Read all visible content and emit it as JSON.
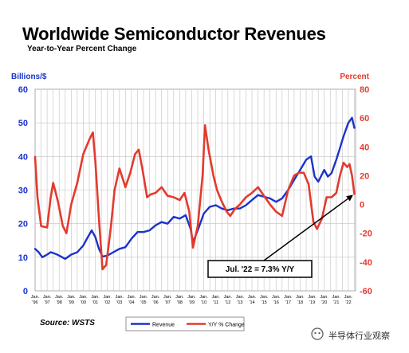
{
  "chart_data": {
    "type": "line",
    "title": "Worldwide Semiconductor Revenues",
    "subtitle": "Year-to-Year Percent Change",
    "left_axis": {
      "label": "Billions/$",
      "range": [
        0,
        60
      ],
      "ticks": [
        0,
        10,
        20,
        30,
        40,
        50,
        60
      ],
      "color": "#1a33cc"
    },
    "right_axis": {
      "label": "Percent",
      "range": [
        -60,
        80
      ],
      "ticks": [
        -60,
        -40,
        -20,
        0,
        20,
        40,
        60,
        80
      ],
      "color": "#e23b2e"
    },
    "x_range": [
      1996,
      2022.6
    ],
    "x_ticks": [
      {
        "year": 1996,
        "label": "Jan. '96"
      },
      {
        "year": 1997,
        "label": "Jan. '97"
      },
      {
        "year": 1998,
        "label": "Jan. '98"
      },
      {
        "year": 1999,
        "label": "Jan. '99"
      },
      {
        "year": 2000,
        "label": "Jan. '00"
      },
      {
        "year": 2001,
        "label": "Jan. '01"
      },
      {
        "year": 2002,
        "label": "Jan. '02"
      },
      {
        "year": 2003,
        "label": "Jan. '03"
      },
      {
        "year": 2004,
        "label": "Jan. '04"
      },
      {
        "year": 2005,
        "label": "Jan. '05"
      },
      {
        "year": 2006,
        "label": "Jan. '06"
      },
      {
        "year": 2007,
        "label": "Jan. '07"
      },
      {
        "year": 2008,
        "label": "Jan. '08"
      },
      {
        "year": 2009,
        "label": "Jan. '09"
      },
      {
        "year": 2010,
        "label": "Jan. '10"
      },
      {
        "year": 2011,
        "label": "Jan. '11"
      },
      {
        "year": 2012,
        "label": "Jan. '12"
      },
      {
        "year": 2013,
        "label": "Jan. '13"
      },
      {
        "year": 2014,
        "label": "Jan. '14"
      },
      {
        "year": 2015,
        "label": "Jan. '15"
      },
      {
        "year": 2016,
        "label": "Jan. '16"
      },
      {
        "year": 2017,
        "label": "Jan. '17"
      },
      {
        "year": 2018,
        "label": "Jan. '18"
      },
      {
        "year": 2019,
        "label": "Jan. '19"
      },
      {
        "year": 2020,
        "label": "Jan. '20"
      },
      {
        "year": 2021,
        "label": "Jan. '21"
      },
      {
        "year": 2022,
        "label": "Jan. '22"
      }
    ],
    "grid": true,
    "legend_position": "bottom-center",
    "series": [
      {
        "name": "Revenue",
        "axis": "left",
        "color": "#1a33cc",
        "points": [
          [
            1996.0,
            12.5
          ],
          [
            1996.3,
            11.5
          ],
          [
            1996.6,
            10.0
          ],
          [
            1997.0,
            10.8
          ],
          [
            1997.3,
            11.5
          ],
          [
            1997.7,
            11.0
          ],
          [
            1998.0,
            10.5
          ],
          [
            1998.5,
            9.5
          ],
          [
            1999.0,
            10.8
          ],
          [
            1999.5,
            11.5
          ],
          [
            2000.0,
            13.5
          ],
          [
            2000.3,
            15.5
          ],
          [
            2000.7,
            18.0
          ],
          [
            2001.0,
            16.0
          ],
          [
            2001.3,
            12.5
          ],
          [
            2001.6,
            10.2
          ],
          [
            2002.0,
            10.5
          ],
          [
            2002.5,
            11.5
          ],
          [
            2003.0,
            12.5
          ],
          [
            2003.5,
            13.0
          ],
          [
            2004.0,
            15.5
          ],
          [
            2004.5,
            17.5
          ],
          [
            2005.0,
            17.5
          ],
          [
            2005.5,
            18.0
          ],
          [
            2006.0,
            19.5
          ],
          [
            2006.5,
            20.5
          ],
          [
            2007.0,
            20.0
          ],
          [
            2007.5,
            22.0
          ],
          [
            2008.0,
            21.5
          ],
          [
            2008.5,
            22.5
          ],
          [
            2008.9,
            18.5
          ],
          [
            2009.1,
            14.5
          ],
          [
            2009.5,
            18.0
          ],
          [
            2010.0,
            23.0
          ],
          [
            2010.5,
            25.0
          ],
          [
            2011.0,
            25.5
          ],
          [
            2011.5,
            24.5
          ],
          [
            2012.0,
            24.0
          ],
          [
            2012.5,
            24.5
          ],
          [
            2013.0,
            24.5
          ],
          [
            2013.5,
            25.5
          ],
          [
            2014.0,
            27.0
          ],
          [
            2014.5,
            28.5
          ],
          [
            2015.0,
            28.0
          ],
          [
            2015.5,
            27.5
          ],
          [
            2016.0,
            26.5
          ],
          [
            2016.5,
            27.5
          ],
          [
            2017.0,
            30.0
          ],
          [
            2017.5,
            33.0
          ],
          [
            2018.0,
            36.0
          ],
          [
            2018.5,
            39.0
          ],
          [
            2018.9,
            40.0
          ],
          [
            2019.2,
            34.0
          ],
          [
            2019.5,
            32.5
          ],
          [
            2020.0,
            36.0
          ],
          [
            2020.3,
            34.0
          ],
          [
            2020.6,
            35.0
          ],
          [
            2021.0,
            39.0
          ],
          [
            2021.3,
            42.5
          ],
          [
            2021.6,
            46.0
          ],
          [
            2022.0,
            50.0
          ],
          [
            2022.3,
            51.5
          ],
          [
            2022.5,
            48.5
          ]
        ]
      },
      {
        "name": "Y/Y % Change",
        "axis": "right",
        "color": "#e23b2e",
        "points": [
          [
            1996.0,
            33.0
          ],
          [
            1996.2,
            5.0
          ],
          [
            1996.5,
            -15.0
          ],
          [
            1997.0,
            -16.0
          ],
          [
            1997.3,
            5.0
          ],
          [
            1997.5,
            15.0
          ],
          [
            1997.9,
            2.0
          ],
          [
            1998.3,
            -15.0
          ],
          [
            1998.6,
            -20.0
          ],
          [
            1999.0,
            0.0
          ],
          [
            1999.5,
            15.0
          ],
          [
            2000.0,
            35.0
          ],
          [
            2000.5,
            45.0
          ],
          [
            2000.8,
            50.0
          ],
          [
            2001.0,
            30.0
          ],
          [
            2001.3,
            -10.0
          ],
          [
            2001.6,
            -45.0
          ],
          [
            2001.9,
            -42.0
          ],
          [
            2002.3,
            -15.0
          ],
          [
            2002.6,
            10.0
          ],
          [
            2003.0,
            25.0
          ],
          [
            2003.5,
            12.0
          ],
          [
            2003.9,
            22.0
          ],
          [
            2004.3,
            35.0
          ],
          [
            2004.6,
            38.0
          ],
          [
            2004.9,
            25.0
          ],
          [
            2005.3,
            5.0
          ],
          [
            2005.6,
            7.0
          ],
          [
            2006.0,
            8.0
          ],
          [
            2006.5,
            12.0
          ],
          [
            2007.0,
            6.0
          ],
          [
            2007.5,
            5.0
          ],
          [
            2008.0,
            3.0
          ],
          [
            2008.4,
            8.0
          ],
          [
            2008.8,
            -5.0
          ],
          [
            2009.1,
            -30.0
          ],
          [
            2009.5,
            -15.0
          ],
          [
            2009.9,
            20.0
          ],
          [
            2010.1,
            55.0
          ],
          [
            2010.4,
            38.0
          ],
          [
            2010.8,
            20.0
          ],
          [
            2011.1,
            10.0
          ],
          [
            2011.5,
            2.0
          ],
          [
            2011.9,
            -5.0
          ],
          [
            2012.2,
            -8.0
          ],
          [
            2012.6,
            -3.0
          ],
          [
            2013.0,
            0.0
          ],
          [
            2013.5,
            5.0
          ],
          [
            2014.0,
            8.0
          ],
          [
            2014.5,
            12.0
          ],
          [
            2015.0,
            6.0
          ],
          [
            2015.5,
            0.0
          ],
          [
            2016.0,
            -5.0
          ],
          [
            2016.5,
            -8.0
          ],
          [
            2017.0,
            10.0
          ],
          [
            2017.5,
            20.0
          ],
          [
            2017.9,
            22.0
          ],
          [
            2018.3,
            22.0
          ],
          [
            2018.7,
            14.0
          ],
          [
            2019.1,
            -12.0
          ],
          [
            2019.4,
            -17.0
          ],
          [
            2019.8,
            -10.0
          ],
          [
            2020.2,
            5.0
          ],
          [
            2020.6,
            5.0
          ],
          [
            2021.0,
            8.0
          ],
          [
            2021.3,
            20.0
          ],
          [
            2021.6,
            29.0
          ],
          [
            2021.9,
            26.0
          ],
          [
            2022.1,
            28.0
          ],
          [
            2022.3,
            20.0
          ],
          [
            2022.5,
            7.3
          ]
        ]
      }
    ],
    "annotation": {
      "text": "Jul. '22 = 7.3% Y/Y",
      "x": 2022.5,
      "y": 7.3,
      "axis": "right"
    }
  },
  "source": "Source: WSTS",
  "watermark": "半导体行业观察"
}
